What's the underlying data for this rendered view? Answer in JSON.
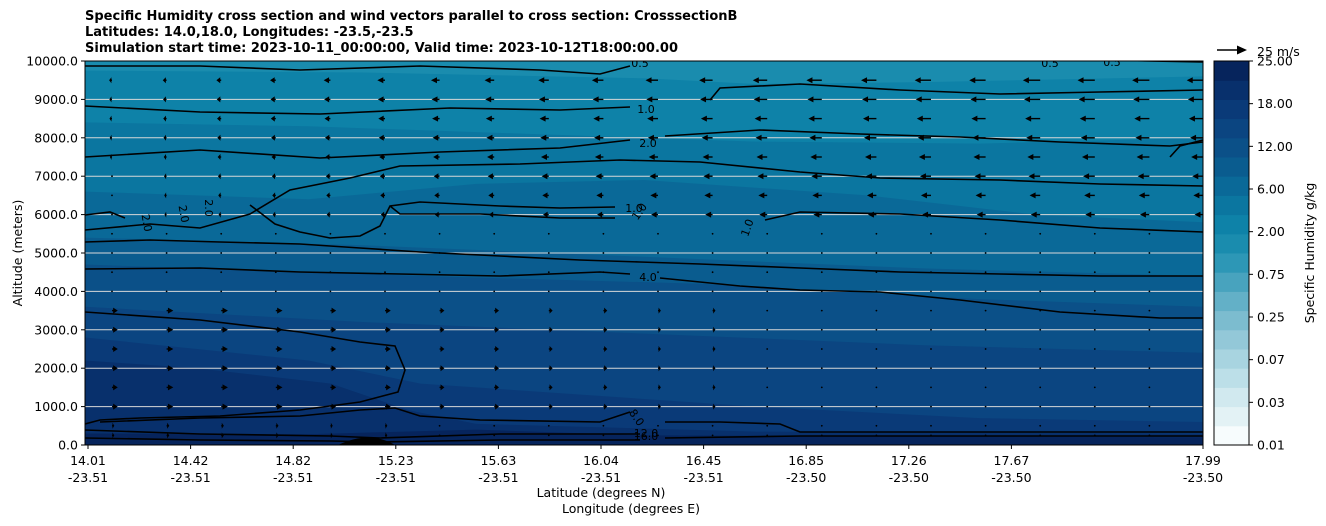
{
  "title_lines": [
    "Specific Humidity cross section and wind vectors parallel to cross section: CrosssectionB",
    "Latitudes: 14.0,18.0, Longitudes: -23.5,-23.5",
    "Simulation start time: 2023-10-11_00:00:00, Valid time: 2023-10-12T18:00:00.00"
  ],
  "chart_data": {
    "type": "heatmap",
    "subtype": "filled-contour cross section with line contours and wind quiver",
    "title": "Specific Humidity cross section and wind vectors parallel to cross section: CrosssectionB",
    "ylabel": "Altitude (meters)",
    "xlabel_1": "Latitude (degrees N)",
    "xlabel_2": "Longitude (degrees E)",
    "ylim": [
      0,
      10000
    ],
    "y_ticks": [
      "0.0",
      "1000.0",
      "2000.0",
      "3000.0",
      "4000.0",
      "5000.0",
      "6000.0",
      "7000.0",
      "8000.0",
      "9000.0",
      "10000.0"
    ],
    "x_lat_ticks": [
      "14.01",
      "14.42",
      "14.82",
      "15.23",
      "15.63",
      "16.04",
      "16.45",
      "16.85",
      "17.26",
      "17.67",
      "17.99"
    ],
    "x_lon_ticks": [
      "-23.51",
      "-23.51",
      "-23.51",
      "-23.51",
      "-23.51",
      "-23.51",
      "-23.51",
      "-23.50",
      "-23.50",
      "-23.50",
      "-23.50"
    ],
    "colorbar": {
      "label": "Specific Humidity g/kg",
      "tick_labels": [
        "0.01",
        "0.03",
        "0.07",
        "0.25",
        "0.75",
        "2.00",
        "6.00",
        "12.00",
        "18.00",
        "25.00"
      ],
      "levels": 20,
      "colors": [
        "#f7fcfd",
        "#e3f2f5",
        "#d1e9ef",
        "#bcdfe8",
        "#a8d4e0",
        "#93c8d8",
        "#7cbccf",
        "#63b0c7",
        "#48a3be",
        "#2d97b6",
        "#1a8cae",
        "#0e82a8",
        "#0b76a0",
        "#0a6998",
        "#0a5c8f",
        "#0b5088",
        "#0b4581",
        "#0a3a78",
        "#08306c",
        "#06245c"
      ]
    },
    "contour_labels": [
      "0.5",
      "0.5",
      "0.5",
      "1.0",
      "2.0",
      "2.0",
      "2.0",
      "2.0",
      "1.0",
      "1.0",
      "1.0",
      "4.0",
      "8.0",
      "12.0",
      "16.0"
    ],
    "quiver_key": "25 m/s",
    "wind_vectors": {
      "columns": 21,
      "levels_m": [
        250,
        500,
        1000,
        1500,
        2000,
        2500,
        3000,
        3500,
        4000,
        4500,
        5000,
        5500,
        6000,
        6500,
        7000,
        7500,
        8000,
        8500,
        9000,
        9500
      ],
      "upper_westward_speed_ms": [
        3,
        4,
        5,
        6,
        7,
        8,
        9,
        10,
        11,
        12,
        13,
        14,
        15,
        16,
        16,
        17,
        17,
        18,
        18,
        18,
        18
      ],
      "lower_eastward_speed_ms": [
        6,
        7,
        7,
        7,
        6,
        6,
        5,
        5,
        4,
        4,
        3,
        3,
        2,
        2,
        2,
        1,
        1,
        1,
        1,
        1,
        1
      ]
    }
  }
}
